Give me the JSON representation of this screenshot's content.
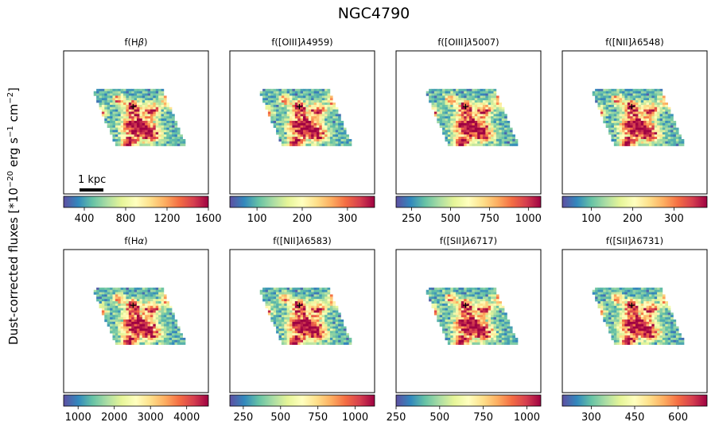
{
  "chart_data": {
    "type": "heatmap",
    "title": "NGC4790",
    "ylabel": "Dust-corrected fluxes [*10^-20 erg s^-1 cm^-2]",
    "ylabel_parts": {
      "prefix": "Dust-corrected fluxes [*10",
      "exp1": "−20",
      "mid1": " erg s",
      "exp2": "−1",
      "mid2": " cm",
      "exp3": "−2",
      "suffix": "]"
    },
    "colormap": "Spectral_r",
    "colormap_stops": [
      "#5e4fa2",
      "#3288bd",
      "#66c2a5",
      "#abdda4",
      "#e6f598",
      "#ffffbf",
      "#fee08b",
      "#fdae61",
      "#f46d43",
      "#d53e4f",
      "#9e0142"
    ],
    "scalebar_label": "1 kpc",
    "center_marker": "+",
    "panels": [
      {
        "label_base": "f(H",
        "label_greek": "β",
        "label_line": "",
        "label_end": ")",
        "vmin": 200,
        "vmax": 1600,
        "ticks": [
          400,
          800,
          1200,
          1600
        ]
      },
      {
        "label_base": "f([OIII]",
        "label_greek": "λ",
        "label_line": "4959",
        "label_end": ")",
        "vmin": 40,
        "vmax": 360,
        "ticks": [
          100,
          200,
          300
        ]
      },
      {
        "label_base": "f([OIII]",
        "label_greek": "λ",
        "label_line": "5007",
        "label_end": ")",
        "vmin": 150,
        "vmax": 1080,
        "ticks": [
          250,
          500,
          750,
          1000
        ]
      },
      {
        "label_base": "f([NII]",
        "label_greek": "λ",
        "label_line": "6548",
        "label_end": ")",
        "vmin": 30,
        "vmax": 380,
        "ticks": [
          100,
          200,
          300
        ]
      },
      {
        "label_base": "f(H",
        "label_greek": "α",
        "label_line": "",
        "label_end": ")",
        "vmin": 600,
        "vmax": 4600,
        "ticks": [
          1000,
          2000,
          3000,
          4000
        ]
      },
      {
        "label_base": "f([NII]",
        "label_greek": "λ",
        "label_line": "6583",
        "label_end": ")",
        "vmin": 160,
        "vmax": 1130,
        "ticks": [
          250,
          500,
          750,
          1000
        ]
      },
      {
        "label_base": "f([SII]",
        "label_greek": "λ",
        "label_line": "6717",
        "label_end": ")",
        "vmin": 250,
        "vmax": 1080,
        "ticks": [
          250,
          500,
          750,
          1000
        ]
      },
      {
        "label_base": "f([SII]",
        "label_greek": "λ",
        "label_line": "6731",
        "label_end": ")",
        "vmin": 200,
        "vmax": 700,
        "ticks": [
          300,
          450,
          600
        ]
      }
    ]
  }
}
